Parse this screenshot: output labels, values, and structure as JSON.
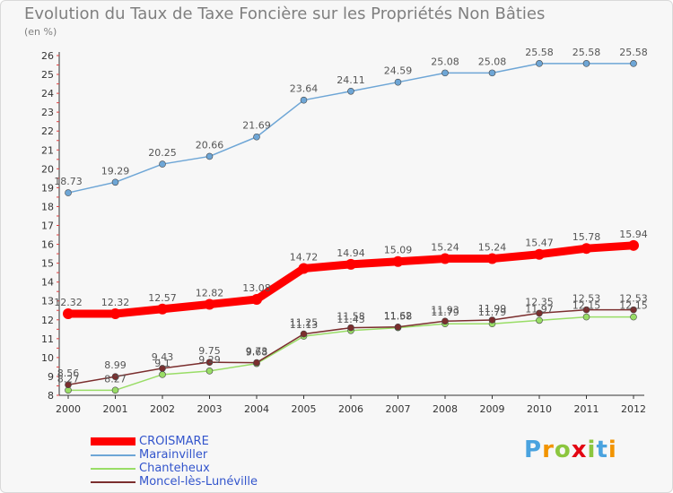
{
  "title": "Evolution du Taux de Taxe Foncière sur les Propriétés Non Bâties",
  "subtitle": "(en %)",
  "logo": {
    "text": "Proxiti",
    "letter_colors": [
      "#4aa3df",
      "#f29400",
      "#8cc63f",
      "#e30613",
      "#8cc63f",
      "#4aa3df",
      "#f29400"
    ]
  },
  "chart_data": {
    "type": "line",
    "title": "Evolution du Taux de Taxe Foncière sur les Propriétés Non Bâties",
    "ylabel": "(en %)",
    "xlabel": "",
    "x": [
      "2000",
      "2001",
      "2002",
      "2003",
      "2004",
      "2005",
      "2006",
      "2007",
      "2008",
      "2009",
      "2010",
      "2011",
      "2012"
    ],
    "yticks": [
      "8",
      "9",
      "10",
      "11",
      "12",
      "13",
      "14",
      "15",
      "16",
      "17",
      "18",
      "19",
      "20",
      "21",
      "22",
      "23",
      "24",
      "25",
      "26"
    ],
    "ylim": [
      8,
      26
    ],
    "grid": false,
    "legend_position": "bottom-left",
    "series": [
      {
        "name": "CROISMARE",
        "color": "#ff0000",
        "emphasis": true,
        "values": [
          12.32,
          12.32,
          12.57,
          12.82,
          13.08,
          14.72,
          14.94,
          15.09,
          15.24,
          15.24,
          15.47,
          15.78,
          15.94
        ],
        "labels": [
          "12.32",
          "12.32",
          "12.57",
          "12.82",
          "13.08",
          "14.72",
          "14.94",
          "15.09",
          "15.24",
          "15.24",
          "15.47",
          "15.78",
          "15.94"
        ]
      },
      {
        "name": "Marainviller",
        "color": "#6ea6d6",
        "emphasis": false,
        "values": [
          18.73,
          19.29,
          20.25,
          20.66,
          21.69,
          23.64,
          24.11,
          24.59,
          25.08,
          25.08,
          25.58,
          25.58,
          25.58
        ],
        "labels": [
          "18.73",
          "19.29",
          "20.25",
          "20.66",
          "21.69",
          "23.64",
          "24.11",
          "24.59",
          "25.08",
          "25.08",
          "25.58",
          "25.58",
          "25.58"
        ]
      },
      {
        "name": "Chanteheux",
        "color": "#99dd66",
        "emphasis": false,
        "values": [
          8.27,
          8.27,
          9.1,
          9.29,
          9.68,
          11.13,
          11.43,
          11.58,
          11.79,
          11.79,
          11.97,
          12.15,
          12.15
        ],
        "labels": [
          "8.27",
          "8.27",
          "9.1",
          "9.29",
          "9.68",
          "11.13",
          "11.43",
          "11.58",
          "11.79",
          "11.79",
          "11.97",
          "12.15",
          "12.15"
        ]
      },
      {
        "name": "Moncel-lès-Lunéville",
        "color": "#7b2e2e",
        "emphasis": false,
        "values": [
          8.56,
          8.99,
          9.43,
          9.75,
          9.73,
          11.25,
          11.58,
          11.62,
          11.93,
          11.99,
          12.35,
          12.53,
          12.53
        ],
        "labels": [
          "8.56",
          "8.99",
          "9.43",
          "9.75",
          "9.73",
          "11.25",
          "11.58",
          "11.62",
          "11.93",
          "11.99",
          "12.35",
          "12.53",
          "12.53"
        ]
      }
    ]
  }
}
